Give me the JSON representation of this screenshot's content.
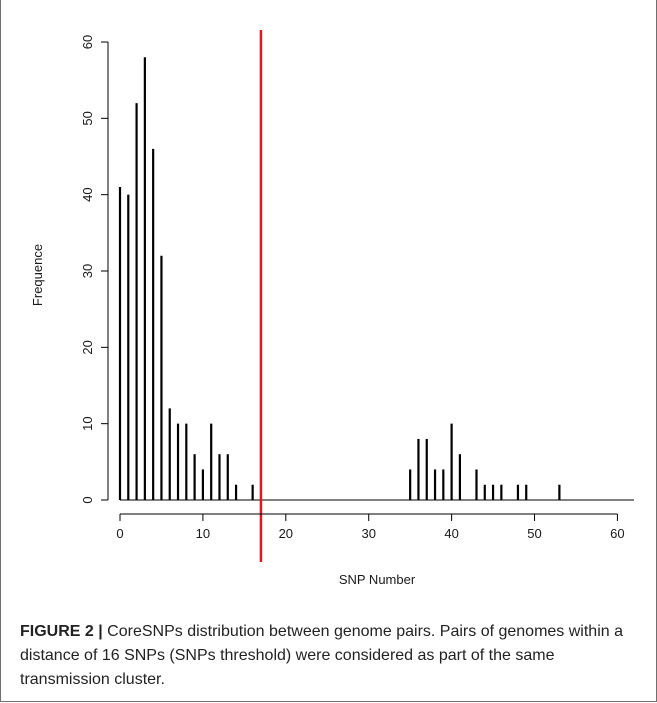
{
  "chart_data": {
    "type": "bar",
    "title": "",
    "xlabel": "SNP Number",
    "ylabel": "Frequence",
    "xlim": [
      0,
      62
    ],
    "ylim": [
      0,
      60
    ],
    "x_ticks": [
      0,
      10,
      20,
      30,
      40,
      50,
      60
    ],
    "y_ticks": [
      0,
      10,
      20,
      30,
      40,
      50,
      60
    ],
    "grid": false,
    "legend": "none",
    "bar_color": "#000000",
    "x": [
      0,
      1,
      2,
      3,
      4,
      5,
      6,
      7,
      8,
      9,
      10,
      11,
      12,
      13,
      14,
      16,
      35,
      36,
      37,
      38,
      39,
      40,
      41,
      43,
      44,
      45,
      46,
      48,
      49,
      53
    ],
    "values": [
      41,
      40,
      52,
      58,
      46,
      32,
      12,
      10,
      10,
      6,
      4,
      10,
      6,
      6,
      2,
      2,
      4,
      8,
      8,
      4,
      4,
      10,
      6,
      4,
      2,
      2,
      2,
      2,
      2,
      2
    ],
    "threshold": {
      "x": 17,
      "color": "#e3161e"
    }
  },
  "caption": {
    "label": "FIGURE 2 |",
    "text": "CoreSNPs distribution between genome pairs. Pairs of genomes within a distance of 16 SNPs (SNPs threshold) were considered as part of the same transmission cluster."
  }
}
